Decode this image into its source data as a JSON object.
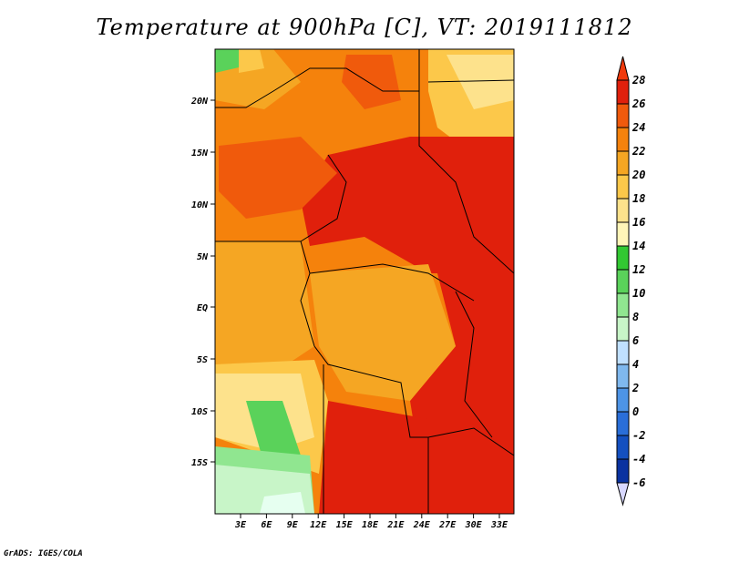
{
  "title": "Temperature at 900hPa [C], VT: 2019111812",
  "credit": "GrADS: IGES/COLA",
  "map": {
    "lat_labels": [
      "20N",
      "15N",
      "10N",
      "5N",
      "EQ",
      "5S",
      "10S",
      "15S"
    ],
    "lon_labels": [
      "3E",
      "6E",
      "9E",
      "12E",
      "15E",
      "18E",
      "21E",
      "24E",
      "27E",
      "30E",
      "33E"
    ]
  },
  "colorbar": {
    "levels": [
      "28",
      "26",
      "24",
      "22",
      "20",
      "18",
      "16",
      "14",
      "12",
      "10",
      "8",
      "6",
      "4",
      "2",
      "0",
      "-2",
      "-4",
      "-6"
    ],
    "colors": [
      "#f03a0c",
      "#e0200c",
      "#f05a0c",
      "#f5820c",
      "#f5a623",
      "#fcc84a",
      "#fde28c",
      "#fff5b8",
      "#32c832",
      "#5ad25a",
      "#90e690",
      "#c8f5c8",
      "#c0e0ff",
      "#7fb8ee",
      "#4d94e6",
      "#2a6ed8",
      "#1450c0",
      "#0a32a0",
      "#0a0a6e",
      "#d8d8ff"
    ]
  }
}
